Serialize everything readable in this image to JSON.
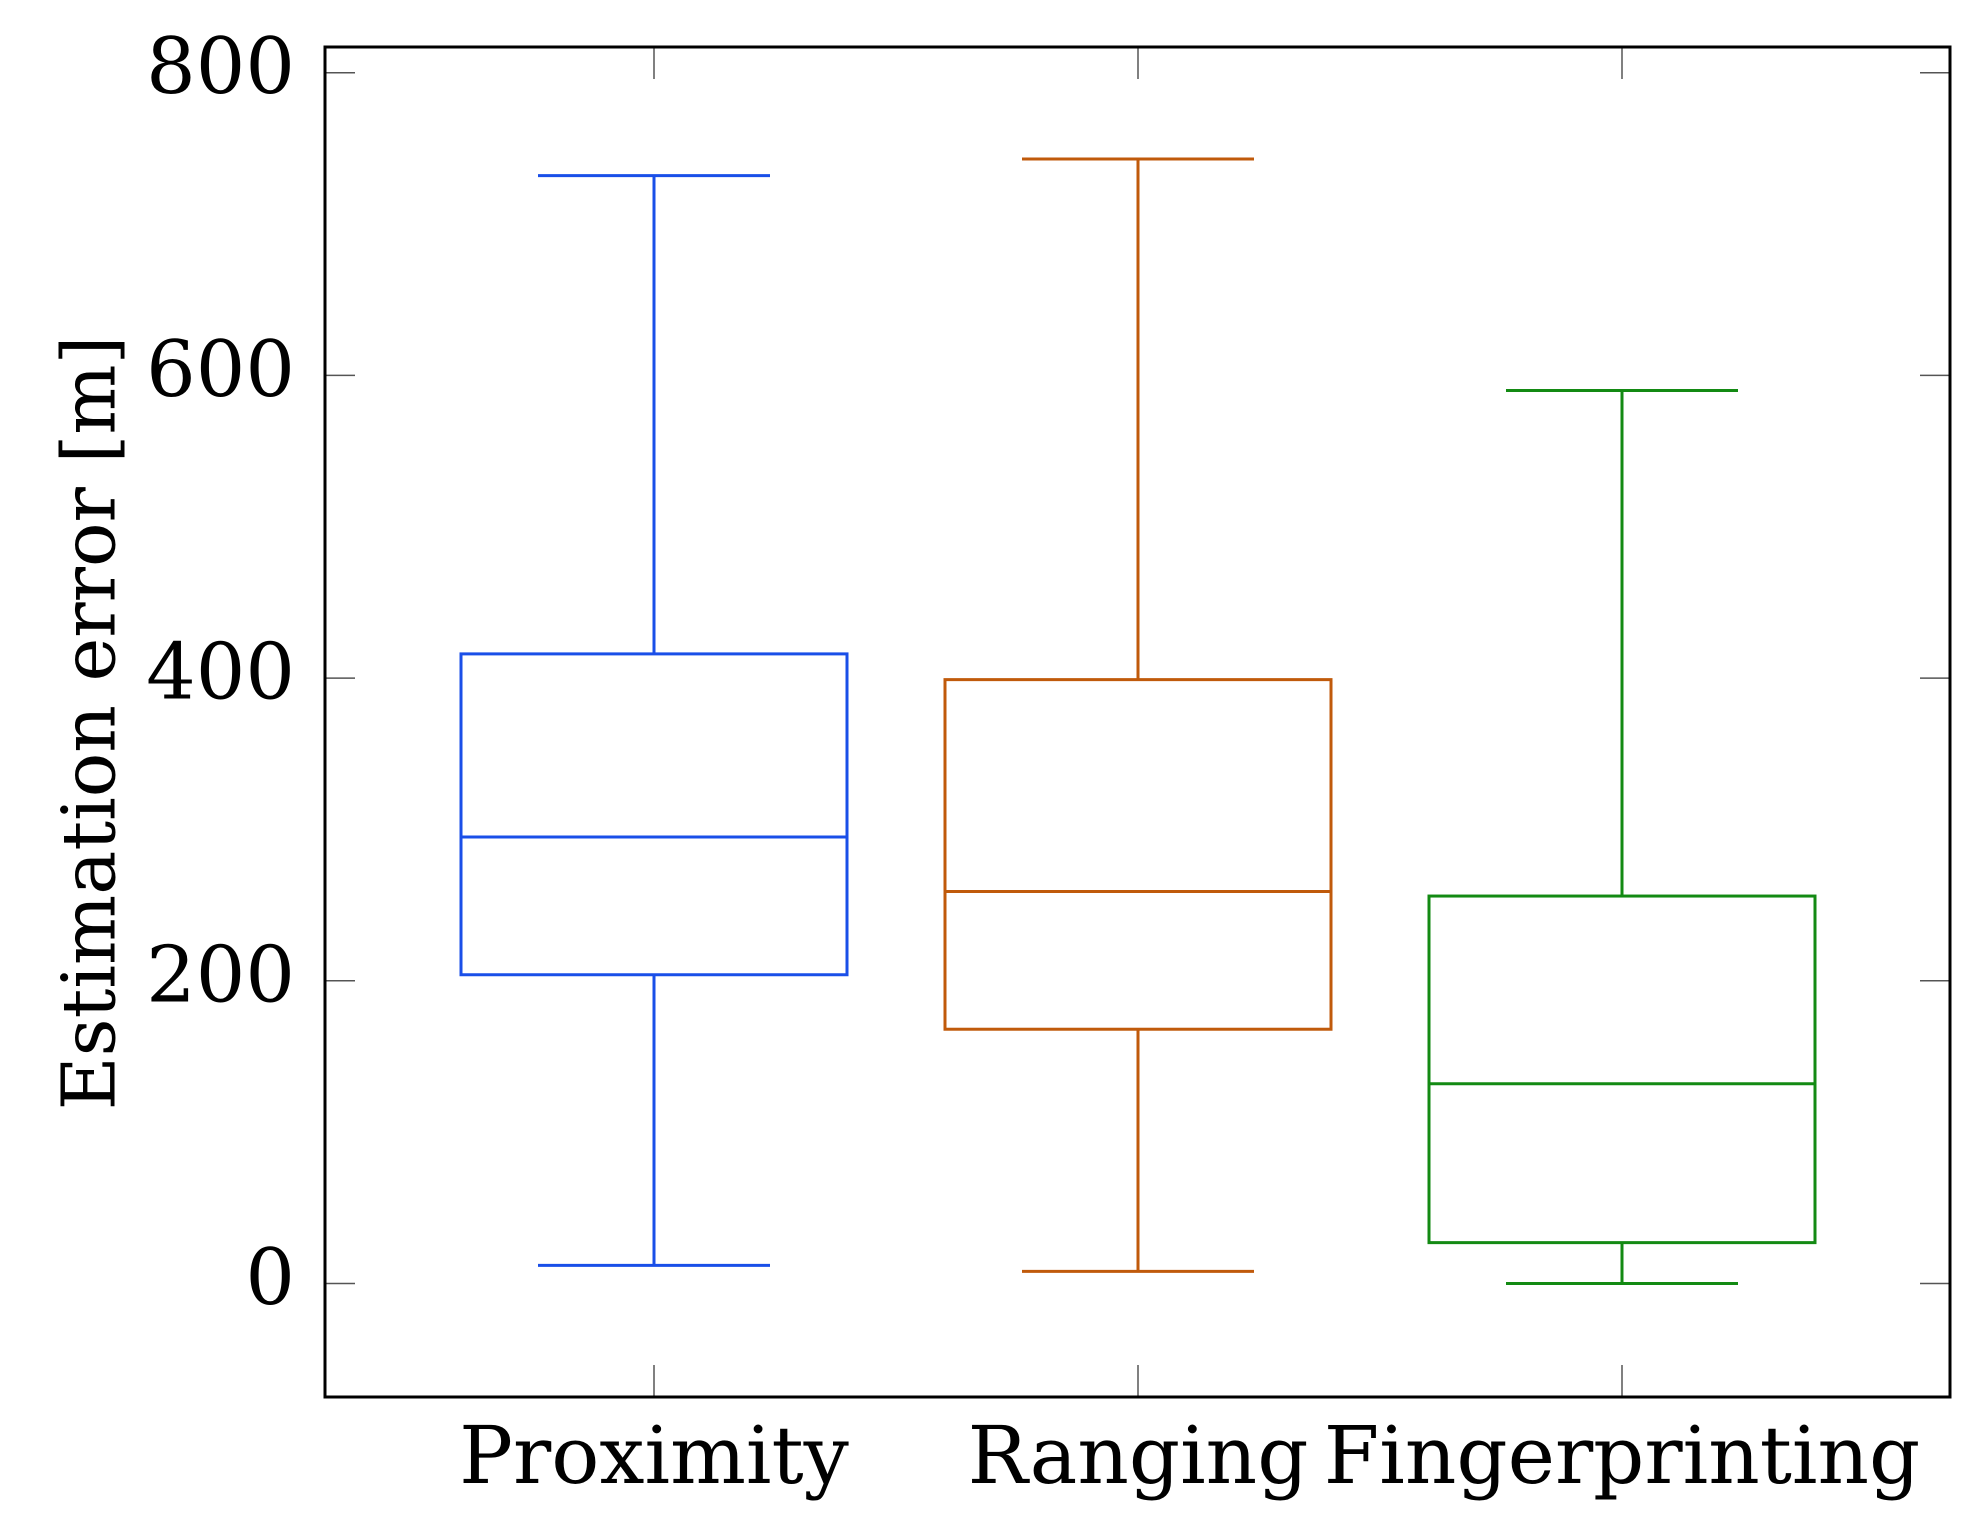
{
  "chart_data": {
    "type": "box",
    "title": "",
    "xlabel": "",
    "ylabel": "Estimation error [m]",
    "ylim": [
      -75,
      817
    ],
    "yticks": [
      0,
      200,
      400,
      600,
      800
    ],
    "grid": false,
    "categories": [
      "Proximity",
      "Ranging",
      "Fingerprinting"
    ],
    "boxes": [
      {
        "category": "Proximity",
        "color": "#1a4fe8",
        "whisker_low": 12,
        "q1": 204,
        "median": 295,
        "q3": 416,
        "whisker_high": 732
      },
      {
        "category": "Ranging",
        "color": "#c05a0b",
        "whisker_low": 8,
        "q1": 168,
        "median": 259,
        "q3": 399,
        "whisker_high": 743
      },
      {
        "category": "Fingerprinting",
        "color": "#138a13",
        "whisker_low": 0,
        "q1": 27,
        "median": 132,
        "q3": 256,
        "whisker_high": 590
      }
    ]
  }
}
